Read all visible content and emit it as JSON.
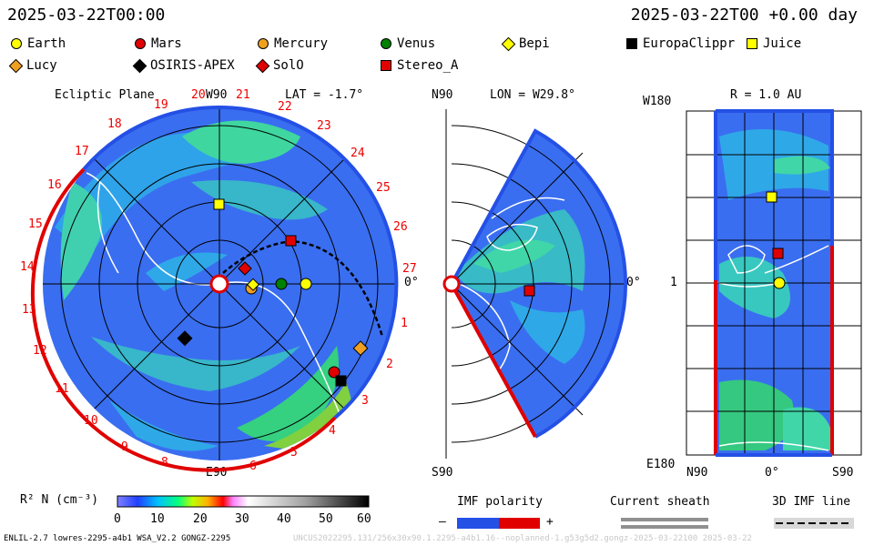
{
  "header": {
    "left_time": "2025-03-22T00:00",
    "right_time": "2025-03-22T00 +0.00 day"
  },
  "legend": [
    {
      "label": "Earth",
      "shape": "circle",
      "color": "#ffff00"
    },
    {
      "label": "Mars",
      "shape": "circle",
      "color": "#e00000"
    },
    {
      "label": "Mercury",
      "shape": "circle",
      "color": "#f0a020"
    },
    {
      "label": "Venus",
      "shape": "circle",
      "color": "#008000"
    },
    {
      "label": "Bepi",
      "shape": "diamond",
      "color": "#ffff00"
    },
    {
      "label": "EuropaClippr",
      "shape": "square",
      "color": "#000000"
    },
    {
      "label": "Juice",
      "shape": "square",
      "color": "#ffff00"
    },
    {
      "label": "Lucy",
      "shape": "diamond",
      "color": "#f0a020"
    },
    {
      "label": "OSIRIS-APEX",
      "shape": "diamond",
      "color": "#000000"
    },
    {
      "label": "SolO",
      "shape": "diamond",
      "color": "#e00000"
    },
    {
      "label": "Stereo_A",
      "shape": "square",
      "color": "#e00000"
    }
  ],
  "ecliptic": {
    "title": "Ecliptic Plane",
    "top": "W90",
    "lat": "LAT = -1.7°",
    "right": "0°",
    "bottom": "E90",
    "sectors": [
      "19",
      "20",
      "21",
      "22",
      "23",
      "24",
      "25",
      "26",
      "27",
      "1",
      "2",
      "3",
      "4",
      "5",
      "6",
      "7",
      "8",
      "9",
      "10",
      "11",
      "12",
      "13",
      "14",
      "15",
      "16",
      "17",
      "18"
    ]
  },
  "meridional": {
    "lon": "LON = W29.8°",
    "top": "N90",
    "bottom": "S90",
    "right": "0°"
  },
  "radial": {
    "title": "R = 1.0 AU",
    "top_left": "W180",
    "mid_left": "1",
    "bottom_left": "E180",
    "b_left": "N90",
    "b_mid": "0°",
    "b_right": "S90"
  },
  "colorbar": {
    "label": "R² N (cm⁻³)",
    "ticks": [
      "0",
      "10",
      "20",
      "30",
      "40",
      "50",
      "60"
    ]
  },
  "bottom_legend": {
    "imf": "IMF polarity",
    "minus": "–",
    "plus": "+",
    "sheath": "Current sheath",
    "imf3d": "3D IMF line"
  },
  "footer": {
    "left": "ENLIL-2.7 lowres-2295-a4b1 WSA_V2.2 GONGZ-2295",
    "right": "UNCUS2022295.131/256x30x90.1.2295-a4b1.16--noplanned-1.g53g5d2.gongz-2025-03-22100   2025-03-22"
  },
  "colors": {
    "blue": "#2450e6",
    "red": "#e00000"
  }
}
